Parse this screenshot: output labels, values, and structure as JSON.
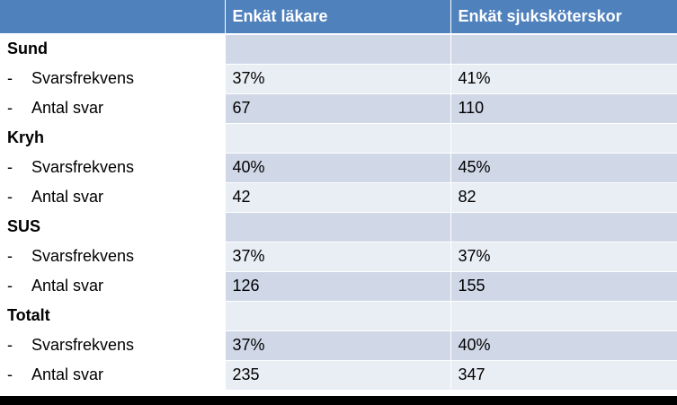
{
  "table": {
    "headers": [
      "",
      "Enkät läkare",
      "Enkät sjuksköterskor"
    ],
    "groups": [
      {
        "name": "Sund",
        "rows": [
          {
            "label": "Svarsfrekvens",
            "lakare": "37%",
            "sjukskoterskor": "41%"
          },
          {
            "label": "Antal svar",
            "lakare": "67",
            "sjukskoterskor": "110"
          }
        ]
      },
      {
        "name": "Kryh",
        "rows": [
          {
            "label": "Svarsfrekvens",
            "lakare": "40%",
            "sjukskoterskor": "45%"
          },
          {
            "label": "Antal svar",
            "lakare": "42",
            "sjukskoterskor": "82"
          }
        ]
      },
      {
        "name": "SUS",
        "rows": [
          {
            "label": "Svarsfrekvens",
            "lakare": "37%",
            "sjukskoterskor": "37%"
          },
          {
            "label": "Antal svar",
            "lakare": "126",
            "sjukskoterskor": "155"
          }
        ]
      },
      {
        "name": "Totalt",
        "rows": [
          {
            "label": "Svarsfrekvens",
            "lakare": "37%",
            "sjukskoterskor": "40%"
          },
          {
            "label": "Antal svar",
            "lakare": "235",
            "sjukskoterskor": "347"
          }
        ]
      }
    ],
    "dash": "-"
  },
  "colors": {
    "header_bg": "#4f81bd",
    "row_dark": "#d0d8e8",
    "row_light": "#e9edf4"
  }
}
